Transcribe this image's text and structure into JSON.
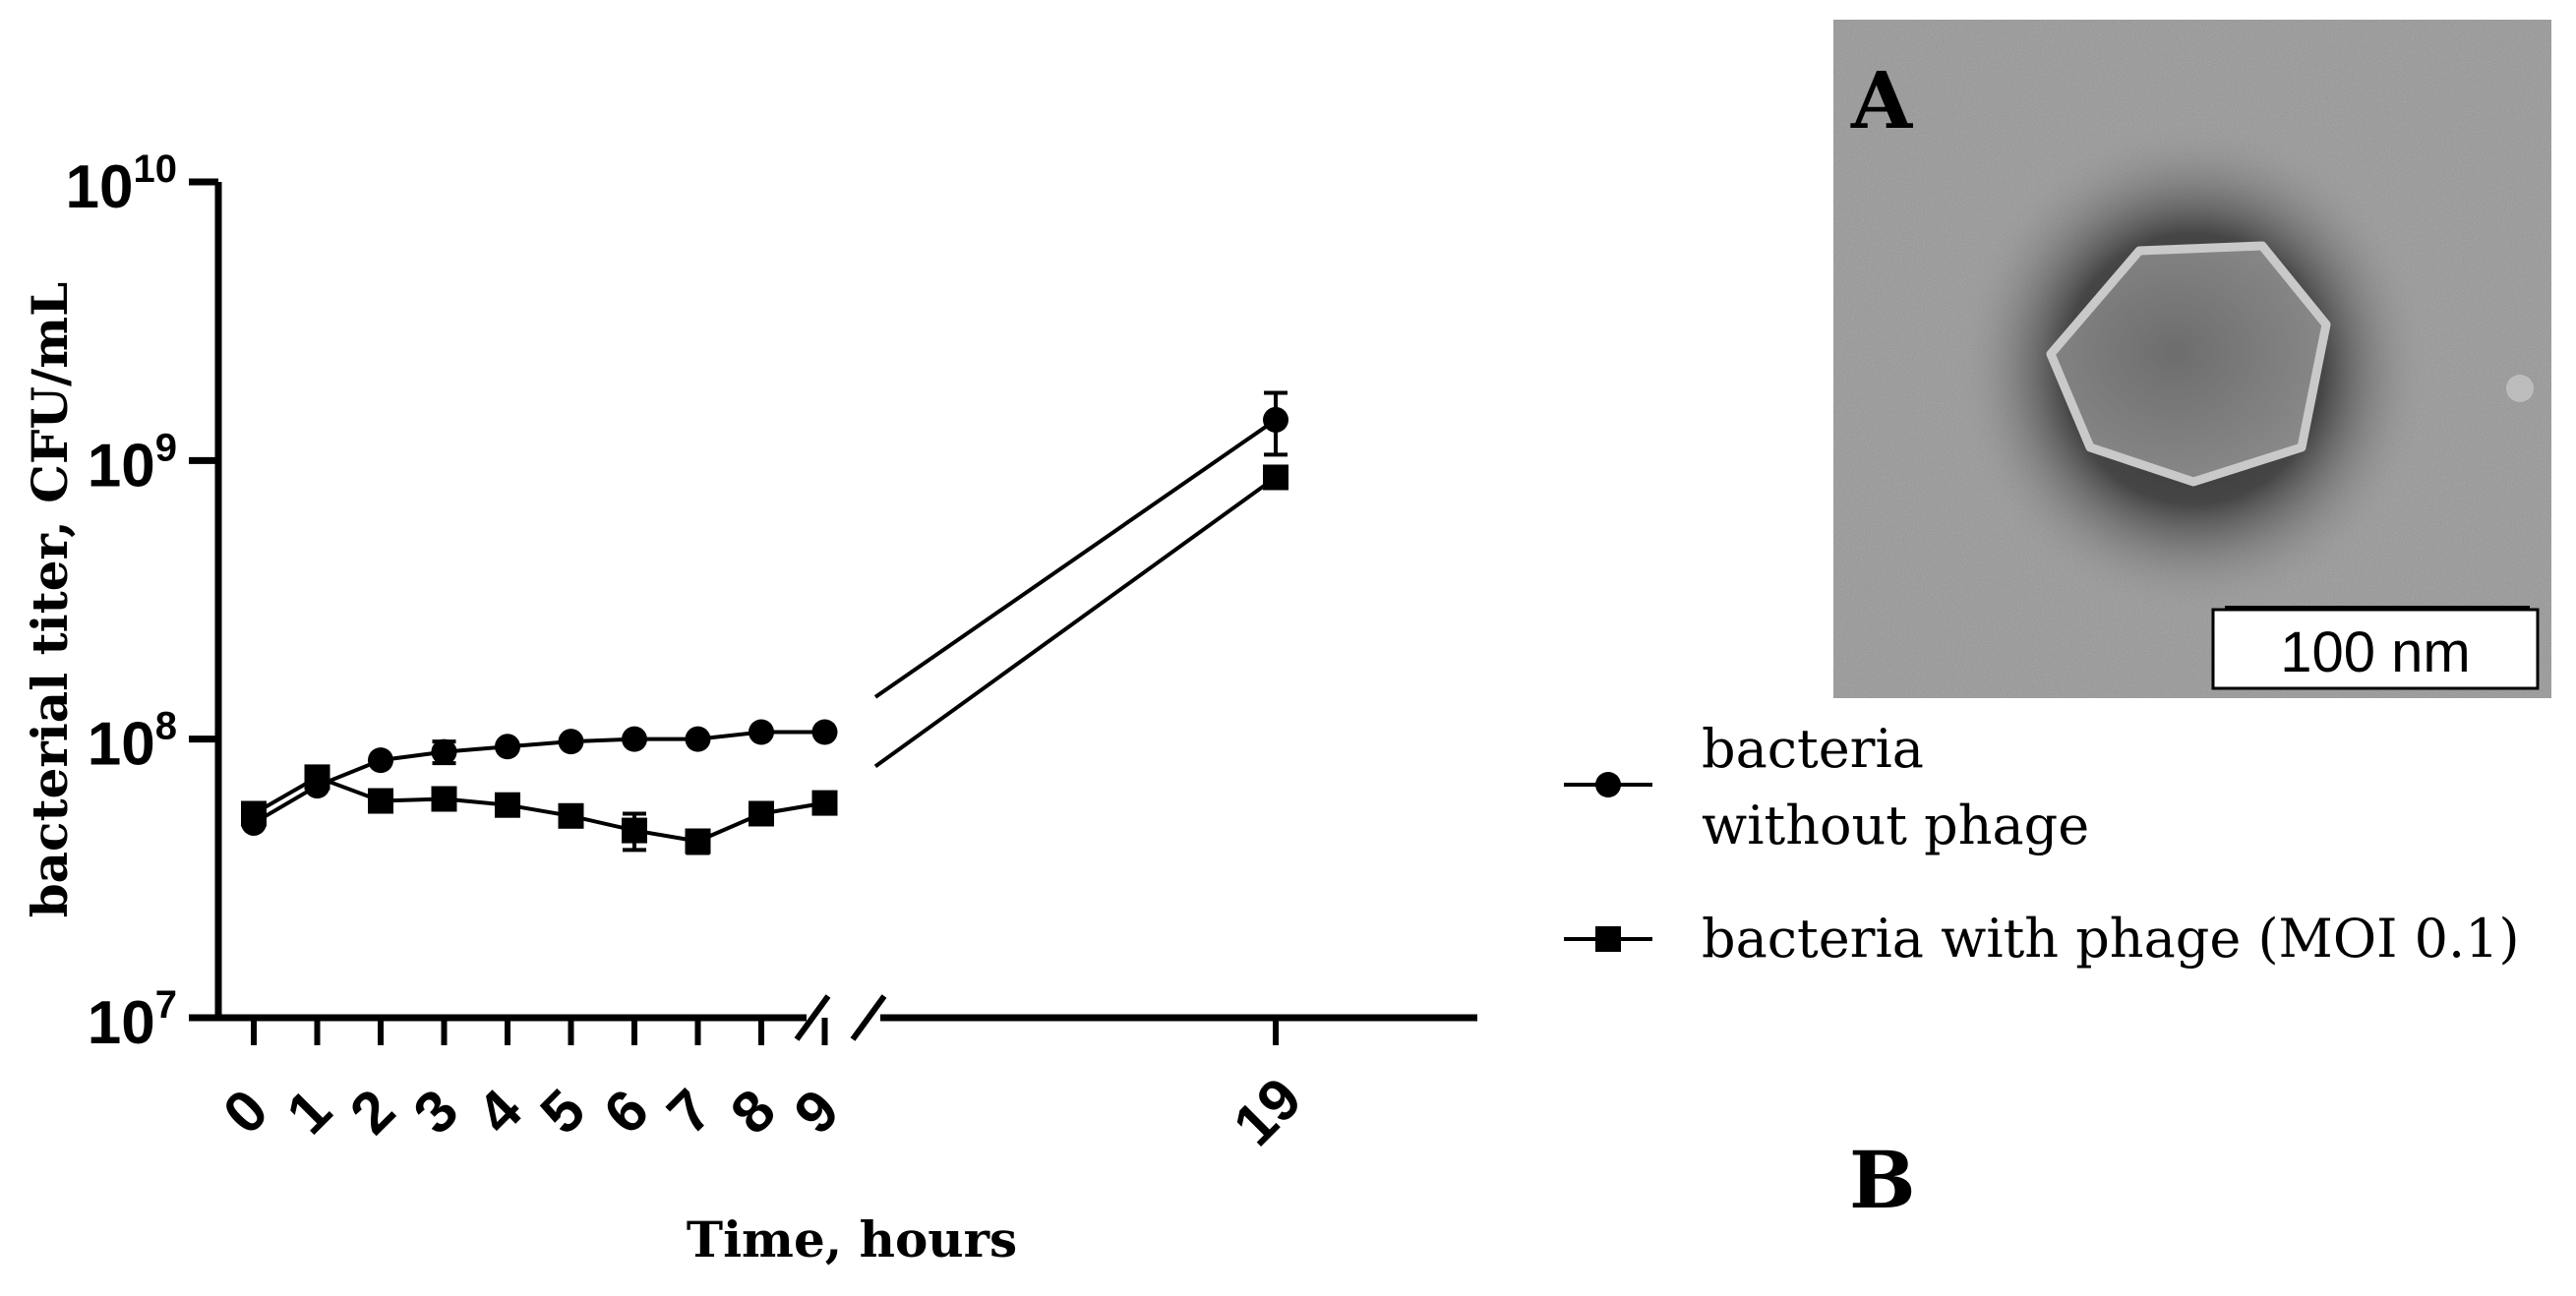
{
  "panel_a": {
    "label": "A",
    "scale_bar_label": "100 nm"
  },
  "panel_b": {
    "label": "B"
  },
  "chart_data": {
    "type": "line",
    "xlabel": "Time, hours",
    "ylabel": "bacterial titer, CFU/mL",
    "y_scale": "log",
    "ylim": [
      10000000,
      10000000000
    ],
    "y_ticks": [
      {
        "base": "10",
        "exp": "7",
        "value": 10000000
      },
      {
        "base": "10",
        "exp": "8",
        "value": 100000000
      },
      {
        "base": "10",
        "exp": "9",
        "value": 1000000000
      },
      {
        "base": "10",
        "exp": "10",
        "value": 10000000000
      }
    ],
    "x_axis_break": "between 9 and 19",
    "x_ticks": [
      "0",
      "1",
      "2",
      "3",
      "4",
      "5",
      "6",
      "7",
      "8",
      "9",
      "19"
    ],
    "legend_position": "right",
    "series": [
      {
        "name_lines": [
          "bacteria",
          "without phage"
        ],
        "marker": "circle",
        "x": [
          0,
          1,
          2,
          3,
          4,
          5,
          6,
          7,
          8,
          9,
          19
        ],
        "y": [
          50000000,
          68000000,
          84000000,
          90000000,
          94000000,
          98000000,
          100000000,
          100000000,
          106000000,
          106000000,
          1400000000
        ],
        "err": [
          0,
          0,
          0,
          8000000,
          0,
          0,
          0,
          0,
          0,
          0,
          350000000
        ]
      },
      {
        "name_lines": [
          "bacteria with phage (MOI 0.1)"
        ],
        "marker": "square",
        "x": [
          0,
          1,
          2,
          3,
          4,
          5,
          6,
          7,
          8,
          9,
          19
        ],
        "y": [
          54000000,
          73000000,
          60000000,
          61000000,
          58000000,
          53000000,
          47000000,
          43000000,
          54000000,
          59000000,
          870000000
        ],
        "err": [
          0,
          0,
          0,
          0,
          0,
          0,
          7000000,
          4000000,
          0,
          0,
          0
        ]
      }
    ]
  }
}
